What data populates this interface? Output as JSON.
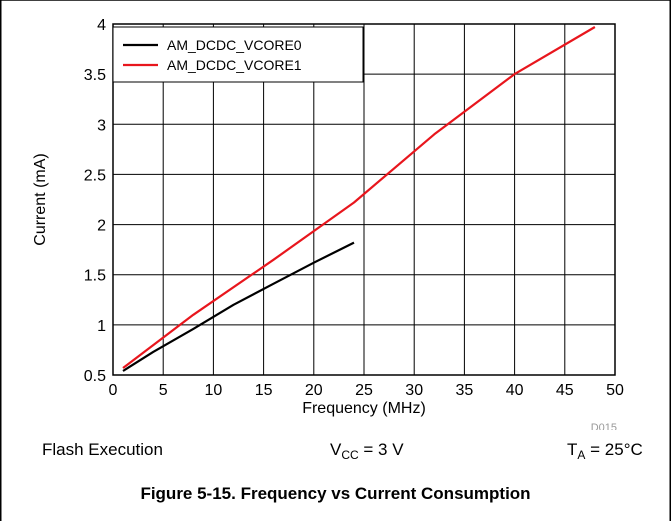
{
  "chart_data": {
    "type": "line",
    "title": "",
    "xlabel": "Frequency (MHz)",
    "ylabel": "Current (mA)",
    "xlim": [
      0,
      50
    ],
    "ylim": [
      0.5,
      4
    ],
    "xticks": [
      "0",
      "5",
      "10",
      "15",
      "20",
      "25",
      "30",
      "35",
      "40",
      "45",
      "50"
    ],
    "yticks": [
      "0.5",
      "1",
      "1.5",
      "2",
      "2.5",
      "3",
      "3.5",
      "4"
    ],
    "grid": true,
    "legend_position": "top-left",
    "series": [
      {
        "name": "AM_DCDC_VCORE0",
        "color": "#000000",
        "x": [
          1,
          4,
          8,
          12,
          16,
          20,
          24
        ],
        "y": [
          0.54,
          0.73,
          0.96,
          1.2,
          1.41,
          1.62,
          1.82
        ]
      },
      {
        "name": "AM_DCDC_VCORE1",
        "color": "#e8161d",
        "x": [
          1,
          8,
          16,
          24,
          32,
          40,
          48
        ],
        "y": [
          0.57,
          1.1,
          1.65,
          2.22,
          2.9,
          3.5,
          3.97
        ]
      }
    ],
    "annotation": "D015"
  },
  "conditions": {
    "flash": "Flash Execution",
    "vcc_main": "V",
    "vcc_sub": "CC",
    "vcc_value": " = 3 V",
    "ta_main": "T",
    "ta_sub": "A",
    "ta_value": " = 25°C"
  },
  "caption": "Figure 5-15. Frequency vs Current Consumption"
}
